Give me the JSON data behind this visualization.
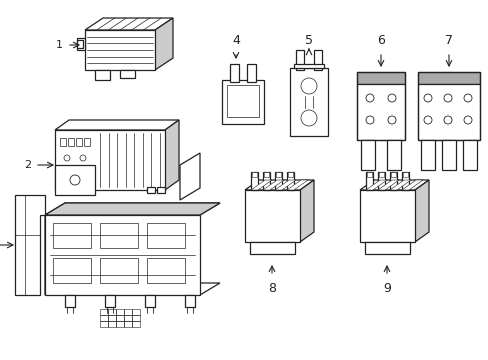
{
  "bg_color": "#ffffff",
  "line_color": "#222222",
  "gray_fill": "#aaaaaa",
  "light_gray": "#cccccc",
  "fig_width": 4.89,
  "fig_height": 3.6,
  "dpi": 100
}
